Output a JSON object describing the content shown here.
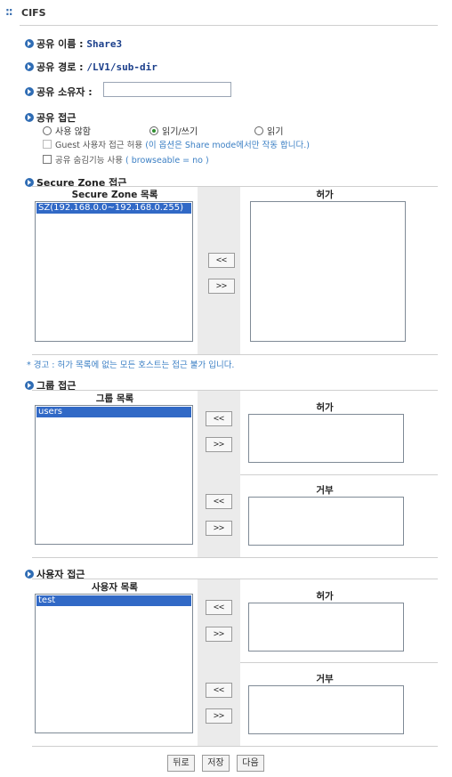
{
  "header": {
    "dots_icon": "::",
    "title": "CIFS"
  },
  "share": {
    "name_label": "공유 이름 :",
    "name_value": "Share3",
    "path_label": "공유 경로 :",
    "path_value": "/LV1/sub-dir",
    "owner_label": "공유 소유자 :",
    "owner_value": ""
  },
  "access": {
    "label": "공유 접근",
    "options": [
      {
        "label": "사용 않함",
        "selected": false
      },
      {
        "label": "읽기/쓰기",
        "selected": true
      },
      {
        "label": "읽기",
        "selected": false
      }
    ],
    "guest_label": "Guest 사용자 접근 허용",
    "guest_note": "(이 옵션은 Share mode에서만 작동 합니다.)",
    "hidden_label": "공유 숨김기능 사용",
    "hidden_note": "( browseable = no )"
  },
  "secure_zone": {
    "section_label": "Secure Zone 접근",
    "list_title": "Secure Zone 목록",
    "items": [
      "SZ(192.168.0.0~192.168.0.255)"
    ],
    "allow_title": "허가",
    "btn_add": "<<",
    "btn_remove": ">>",
    "warning": "* 경고 : 허가 목록에 없는 모든 호스트는 접근 불가 입니다."
  },
  "group_access": {
    "section_label": "그룹 접근",
    "list_title": "그룹 목록",
    "items": [
      "users"
    ],
    "allow_title": "허가",
    "deny_title": "거부",
    "btn_add": "<<",
    "btn_remove": ">>"
  },
  "user_access": {
    "section_label": "사용자 접근",
    "list_title": "사용자 목록",
    "items": [
      "test"
    ],
    "allow_title": "허가",
    "deny_title": "거부",
    "btn_add": "<<",
    "btn_remove": ">>"
  },
  "footer": {
    "back": "뒤로",
    "save": "저장",
    "next": "다음"
  }
}
